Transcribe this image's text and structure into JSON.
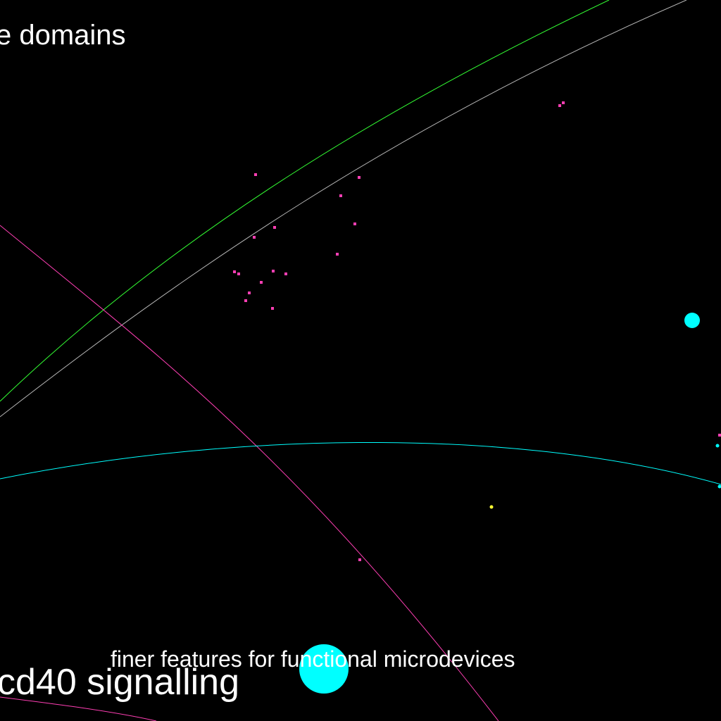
{
  "labels": {
    "top": "e domains",
    "bottom": "cd40 signalling",
    "middle": "finer features for functional microdevices"
  },
  "colors": {
    "background": "#000000",
    "text": "#ffffff",
    "pink": "#ff3fb4",
    "green": "#33ff33",
    "gray": "#b4b4b4",
    "cyan": "#00ffff",
    "yellow": "#ffff33"
  }
}
